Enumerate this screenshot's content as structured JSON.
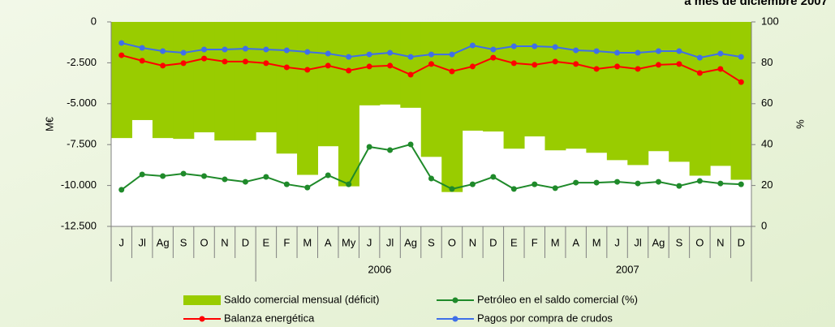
{
  "chart_data": {
    "type": "combo",
    "title": "a mes de diciembre 2007",
    "ylabel": "M€",
    "y2label": "%",
    "category_groups": [
      {
        "name": null,
        "categories": [
          "J",
          "Jl",
          "Ag",
          "S",
          "O",
          "N",
          "D"
        ]
      },
      {
        "name": "2006",
        "categories": [
          "E",
          "F",
          "M",
          "A",
          "My",
          "J",
          "Jl",
          "Ag",
          "S",
          "O",
          "N",
          "D"
        ]
      },
      {
        "name": "2007",
        "categories": [
          "E",
          "F",
          "M",
          "A",
          "M",
          "J",
          "Jl",
          "Ag",
          "S",
          "O",
          "N",
          "D"
        ]
      }
    ],
    "ylim": [
      -12500,
      0
    ],
    "yticks": [
      {
        "value": 0,
        "label": "0"
      },
      {
        "value": -2500,
        "label": "-2.500"
      },
      {
        "value": -5000,
        "label": "-5.000"
      },
      {
        "value": -7500,
        "label": "-7.500"
      },
      {
        "value": -10000,
        "label": "-10.000"
      },
      {
        "value": -12500,
        "label": "-12.500"
      }
    ],
    "y2lim": [
      0,
      100
    ],
    "y2ticks": [
      0,
      20,
      40,
      60,
      80,
      100
    ],
    "grid": false,
    "series": [
      {
        "name": "Saldo comercial mensual (déficit)",
        "type": "bar",
        "color": "#99cc00",
        "values": [
          -7100,
          -6000,
          -7100,
          -7150,
          -6750,
          -7250,
          -7250,
          -6750,
          -8050,
          -9350,
          -7600,
          -10050,
          -5100,
          -5050,
          -5250,
          -8250,
          -10400,
          -6650,
          -6700,
          -7750,
          -7000,
          -7850,
          -7750,
          -8000,
          -8450,
          -8750,
          -7900,
          -8550,
          -9400,
          -8800,
          -9650
        ]
      },
      {
        "name": "Petróleo en el saldo comercial (%)",
        "type": "line",
        "axis": "y2",
        "color": "#1f8a2a",
        "values": [
          17.9,
          25.4,
          24.6,
          25.8,
          24.6,
          23.0,
          21.8,
          24.2,
          20.6,
          19.0,
          25.0,
          20.6,
          38.9,
          37.3,
          40.1,
          23.4,
          18.3,
          20.6,
          24.2,
          18.3,
          20.6,
          18.7,
          21.4,
          21.4,
          21.8,
          21.0,
          21.8,
          19.8,
          22.2,
          21.0,
          20.6
        ]
      },
      {
        "name": "Balanza energética",
        "type": "line",
        "axis": "y2",
        "color": "#ff0000",
        "values": [
          83.7,
          81.0,
          78.6,
          79.8,
          82.1,
          80.6,
          80.6,
          79.8,
          77.8,
          76.6,
          78.6,
          76.2,
          78.2,
          78.6,
          74.2,
          79.4,
          75.8,
          78.2,
          82.5,
          79.8,
          79.0,
          80.6,
          79.4,
          77.0,
          78.2,
          77.0,
          79.0,
          79.4,
          75.0,
          77.0,
          70.6
        ]
      },
      {
        "name": "Pagos por compra de crudos",
        "type": "line",
        "axis": "y2",
        "color": "#3f6fe8",
        "values": [
          89.7,
          87.3,
          85.7,
          84.9,
          86.5,
          86.5,
          86.9,
          86.5,
          86.1,
          85.3,
          84.5,
          82.9,
          84.1,
          84.9,
          82.9,
          84.1,
          84.1,
          88.5,
          86.5,
          88.1,
          88.1,
          87.7,
          86.1,
          85.7,
          84.9,
          84.9,
          85.7,
          85.7,
          82.5,
          84.5,
          82.9
        ]
      }
    ]
  }
}
